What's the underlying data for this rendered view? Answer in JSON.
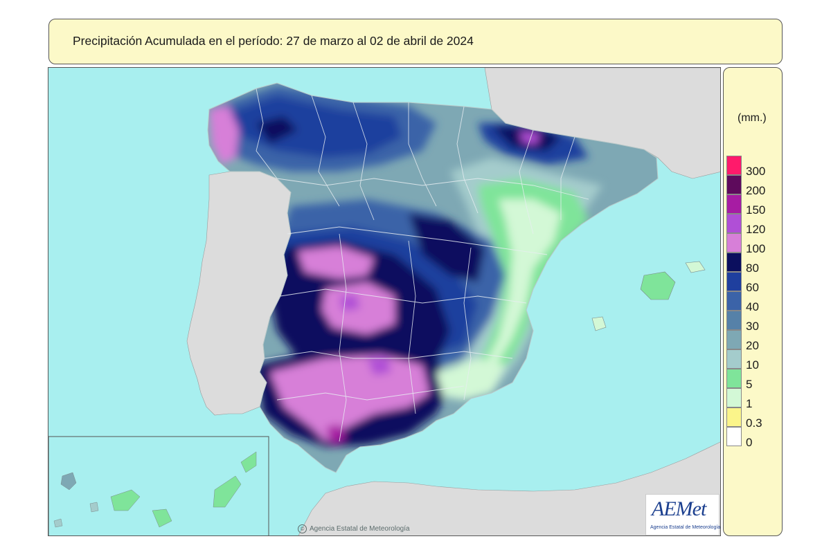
{
  "header": {
    "title": "Precipitación Acumulada en el período: 27  de marzo  al 02  de abril de  2024"
  },
  "legend": {
    "unit": "(mm.)",
    "ticks": [
      "300",
      "200",
      "150",
      "120",
      "100",
      "80",
      "60",
      "40",
      "30",
      "20",
      "10",
      "5",
      "1",
      "0.3",
      "0"
    ],
    "colors": [
      "#ff1a6b",
      "#5e0a5c",
      "#a71ca3",
      "#b04fd6",
      "#d77fd8",
      "#0b0f5e",
      "#1f3f9e",
      "#3b63a8",
      "#5681a8",
      "#7ea8b4",
      "#a4cccc",
      "#7fe49a",
      "#d3f8d6",
      "#fbf58a",
      "#ffffff"
    ]
  },
  "map": {
    "sea_color": "#a8efef",
    "land_color": "#dcdcdc"
  },
  "branding": {
    "logo_text": "AEMet",
    "logo_subtitle": "Agencia Estatal de Meteorología",
    "copyright_symbol": "©",
    "copyright": "Agencia Estatal de Meteorología"
  }
}
